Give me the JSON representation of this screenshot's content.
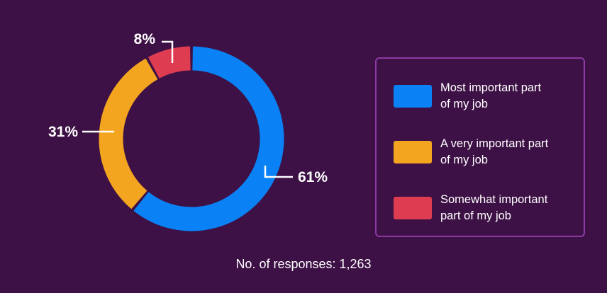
{
  "chart_data": {
    "type": "pie",
    "variant": "donut",
    "categories": [
      "Most important part of my job",
      "A very important part of my job",
      "Somewhat important part of my job"
    ],
    "values": [
      61,
      31,
      8
    ],
    "labels": [
      "61%",
      "31%",
      "8%"
    ],
    "colors": [
      "#0a82f5",
      "#f4a51f",
      "#de3d51"
    ],
    "legend_position": "right",
    "legend": [
      {
        "line1": "Most important part",
        "line2": "of my job",
        "color": "#0a82f5"
      },
      {
        "line1": "A very important part",
        "line2": "of my job",
        "color": "#f4a51f"
      },
      {
        "line1": "Somewhat important",
        "line2": "part of my job",
        "color": "#de3d51"
      }
    ]
  },
  "footer": {
    "responses_text": "No. of responses: 1,263"
  },
  "theme": {
    "background": "#3d1145",
    "legend_border": "#8b3aa3",
    "text": "#ffffff"
  }
}
